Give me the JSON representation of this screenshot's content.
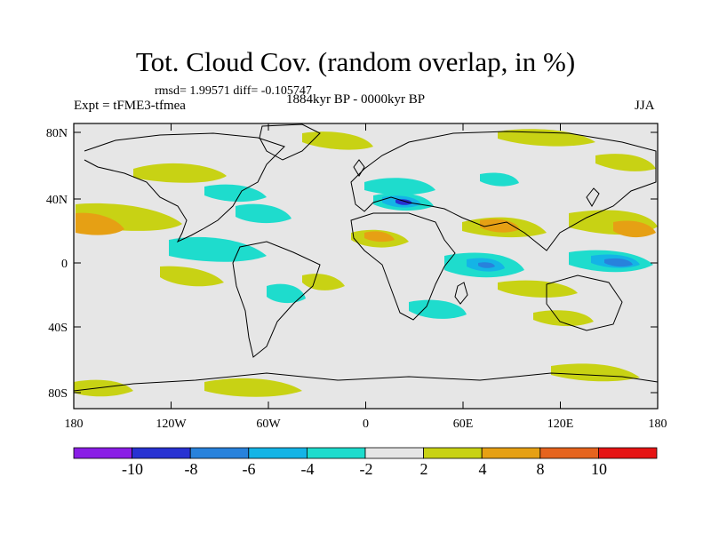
{
  "header": {
    "title": "Tot. Cloud Cov. (random overlap, in %)",
    "stats": "rmsd= 1.99571 diff= -0.105747",
    "experiment": "Expt = tFME3-tfmea",
    "period": "1884kyr BP - 0000kyr BP",
    "season": "JJA"
  },
  "map": {
    "projection": "cylindrical-equidistant",
    "lon_range": [
      -180,
      180
    ],
    "lat_range": [
      -90,
      90
    ],
    "lon_ticks": [
      "180",
      "120W",
      "60W",
      "0",
      "60E",
      "120E",
      "180"
    ],
    "lat_ticks": [
      "80N",
      "40N",
      "0",
      "40S",
      "80S"
    ],
    "background_color": "#e6e6e6",
    "coastline_color": "#000000"
  },
  "colorbar": {
    "labels": [
      "-10",
      "-8",
      "-6",
      "-4",
      "-2",
      "2",
      "4",
      "8",
      "10"
    ],
    "colors": [
      "#8a1ee6",
      "#2832d2",
      "#2882dc",
      "#14b4e6",
      "#1edccd",
      "#e6e6e6",
      "#c8d214",
      "#e6a014",
      "#e6641e",
      "#e61414"
    ]
  }
}
